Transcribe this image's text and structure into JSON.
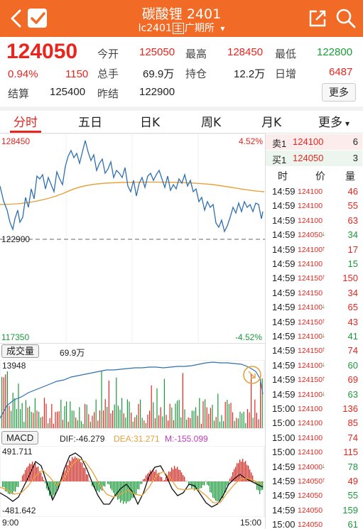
{
  "header": {
    "title": "碳酸锂 2401",
    "code": "lc2401",
    "tag_main": "主",
    "exchange": "广期所",
    "dropdown_arrow": "▾"
  },
  "quote": {
    "last": "124050",
    "change_pct": "0.94%",
    "change": "1150",
    "settle_label": "结算",
    "settle": "125400",
    "prev_settle_label": "昨结",
    "prev_settle": "122900",
    "open_label": "今开",
    "open": "125050",
    "high_label": "最高",
    "high": "128450",
    "low_label": "最低",
    "low": "122800",
    "volume_label": "总手",
    "volume": "69.9万",
    "oi_label": "持仓",
    "oi": "12.2万",
    "oi_change_label": "日增",
    "oi_change": "6487",
    "more_button": "更多"
  },
  "tabs": [
    "分时",
    "五日",
    "日K",
    "周K",
    "月K",
    "更多"
  ],
  "tabs_more_arrow": "▾",
  "price_chart": {
    "top_price": "128450",
    "top_pct": "4.52%",
    "bottom_price": "117350",
    "bottom_pct": "-4.52%",
    "ref_price": "122900"
  },
  "volume_chart": {
    "label": "成交量",
    "value": "69.9万",
    "max_label": "13948"
  },
  "macd": {
    "label": "MACD",
    "dif": "DIF:-46.279",
    "dea": "DEA:31.271",
    "m": "M:-155.099",
    "top": "491.711",
    "bottom": "-481.642",
    "start_time": "9:00",
    "end_time": "15:00"
  },
  "order_book": [
    {
      "label": "卖1",
      "price": "124100",
      "qty": "6"
    },
    {
      "label": "买1",
      "price": "124050",
      "qty": "3"
    }
  ],
  "trade_headers": [
    "时",
    "价",
    "量"
  ],
  "trades": [
    {
      "time": "14:59",
      "price": "124100",
      "arrow": "",
      "vol": "46",
      "color": "red"
    },
    {
      "time": "14:59",
      "price": "124100",
      "arrow": "",
      "vol": "55",
      "color": "red"
    },
    {
      "time": "14:59",
      "price": "124100",
      "arrow": "",
      "vol": "63",
      "color": "red"
    },
    {
      "time": "14:59",
      "price": "124050",
      "arrow": "↓",
      "vol": "34",
      "color": "green"
    },
    {
      "time": "14:59",
      "price": "124100",
      "arrow": "↑",
      "vol": "17",
      "color": "red"
    },
    {
      "time": "14:59",
      "price": "124100",
      "arrow": "",
      "vol": "15",
      "color": "green"
    },
    {
      "time": "14:59",
      "price": "124150",
      "arrow": "↑",
      "vol": "150",
      "color": "red"
    },
    {
      "time": "14:59",
      "price": "124150",
      "arrow": "",
      "vol": "34",
      "color": "red"
    },
    {
      "time": "14:59",
      "price": "124100",
      "arrow": "↓",
      "vol": "65",
      "color": "red"
    },
    {
      "time": "14:59",
      "price": "124150",
      "arrow": "↑",
      "vol": "43",
      "color": "red"
    },
    {
      "time": "14:59",
      "price": "124100",
      "arrow": "↓",
      "vol": "41",
      "color": "green"
    },
    {
      "time": "14:59",
      "price": "124150",
      "arrow": "↑",
      "vol": "74",
      "color": "red"
    },
    {
      "time": "14:59",
      "price": "124100",
      "arrow": "↓",
      "vol": "60",
      "color": "green"
    },
    {
      "time": "14:59",
      "price": "124150",
      "arrow": "↑",
      "vol": "69",
      "color": "red"
    },
    {
      "time": "14:59",
      "price": "124100",
      "arrow": "↓",
      "vol": "63",
      "color": "green"
    },
    {
      "time": "15:00",
      "price": "124100",
      "arrow": "",
      "vol": "136",
      "color": "red"
    },
    {
      "time": "15:00",
      "price": "124100",
      "arrow": "",
      "vol": "85",
      "color": "red"
    },
    {
      "time": "15:00",
      "price": "124100",
      "arrow": "",
      "vol": "74",
      "color": "red"
    },
    {
      "time": "15:00",
      "price": "124100",
      "arrow": "",
      "vol": "115",
      "color": "red"
    },
    {
      "time": "14:59",
      "price": "124000",
      "arrow": "↓",
      "vol": "78",
      "color": "green"
    },
    {
      "time": "14:59",
      "price": "124050",
      "arrow": "↑",
      "vol": "49",
      "color": "red"
    },
    {
      "time": "14:59",
      "price": "124050",
      "arrow": "",
      "vol": "55",
      "color": "green"
    },
    {
      "time": "14:59",
      "price": "124050",
      "arrow": "",
      "vol": "159",
      "color": "green"
    },
    {
      "time": "15:00",
      "price": "124050",
      "arrow": "",
      "vol": "61",
      "color": "green"
    }
  ],
  "colors": {
    "brand": "#f26b26",
    "up": "#e8251e",
    "down": "#1a9a3a",
    "price_line": "#2f6fb0",
    "avg_line": "#e6a23c"
  },
  "icons": {
    "back": "chevron-left-icon",
    "select": "check-icon",
    "share": "share-icon",
    "search": "search-icon"
  }
}
